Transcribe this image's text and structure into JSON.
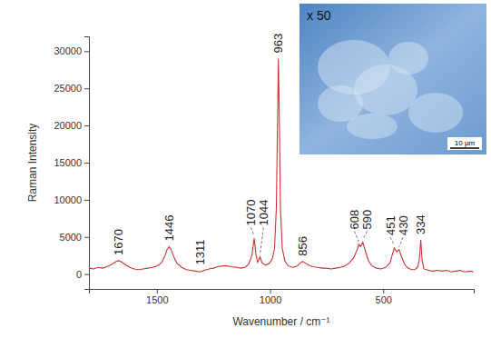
{
  "chart_data": {
    "type": "line",
    "x_label": "Wavenumber / cm⁻¹",
    "y_label": "Raman Intensity",
    "color": "#cc3333",
    "grid": false,
    "xlim": [
      1800,
      100
    ],
    "ylim": [
      -2000,
      32000
    ],
    "xticks": [
      1500,
      1000,
      500
    ],
    "yticks": [
      0,
      5000,
      10000,
      15000,
      20000,
      25000,
      30000
    ],
    "x": [
      1800,
      1780,
      1760,
      1740,
      1720,
      1700,
      1680,
      1670,
      1660,
      1640,
      1620,
      1600,
      1580,
      1560,
      1540,
      1520,
      1500,
      1480,
      1465,
      1455,
      1446,
      1437,
      1425,
      1410,
      1390,
      1370,
      1350,
      1330,
      1311,
      1290,
      1270,
      1250,
      1230,
      1210,
      1190,
      1170,
      1150,
      1130,
      1110,
      1095,
      1080,
      1070,
      1062,
      1055,
      1044,
      1035,
      1020,
      1005,
      990,
      980,
      972,
      967,
      963,
      959,
      954,
      946,
      935,
      920,
      900,
      880,
      866,
      856,
      846,
      830,
      810,
      790,
      770,
      750,
      730,
      710,
      690,
      670,
      650,
      630,
      615,
      608,
      600,
      590,
      580,
      565,
      550,
      530,
      510,
      490,
      470,
      460,
      451,
      440,
      430,
      420,
      405,
      390,
      375,
      360,
      348,
      340,
      334,
      328,
      320,
      300,
      280,
      260,
      240,
      220,
      200,
      180,
      160,
      140,
      120,
      100
    ],
    "values": [
      800,
      700,
      900,
      800,
      1000,
      1300,
      1700,
      1800,
      1700,
      1300,
      900,
      700,
      600,
      700,
      800,
      900,
      1100,
      1500,
      2400,
      3300,
      3700,
      3300,
      2300,
      1400,
      900,
      600,
      500,
      400,
      300,
      500,
      700,
      800,
      1000,
      1100,
      1100,
      1000,
      900,
      800,
      900,
      1300,
      2500,
      4800,
      2600,
      1600,
      2300,
      1500,
      1200,
      1400,
      2000,
      3500,
      9000,
      20000,
      29000,
      21000,
      9000,
      3500,
      1800,
      1100,
      900,
      1100,
      1500,
      1700,
      1500,
      1200,
      1000,
      900,
      800,
      800,
      700,
      800,
      900,
      1100,
      1500,
      2200,
      3300,
      4000,
      3700,
      4300,
      3200,
      1800,
      1100,
      800,
      700,
      900,
      1500,
      2600,
      3500,
      3000,
      3300,
      2400,
      1300,
      800,
      600,
      600,
      900,
      2000,
      4600,
      1800,
      700,
      500,
      400,
      500,
      400,
      500,
      300,
      400,
      500,
      300,
      400,
      300
    ],
    "annotations": [
      {
        "label": "1670",
        "x": 1670
      },
      {
        "label": "1446",
        "x": 1446
      },
      {
        "label": "1311",
        "x": 1311
      },
      {
        "label": "1070",
        "x": 1070
      },
      {
        "label": "1044",
        "x": 1044
      },
      {
        "label": "963",
        "x": 963
      },
      {
        "label": "856",
        "x": 856
      },
      {
        "label": "608",
        "x": 608
      },
      {
        "label": "590",
        "x": 590
      },
      {
        "label": "451",
        "x": 451
      },
      {
        "label": "430",
        "x": 430
      },
      {
        "label": "334",
        "x": 334
      }
    ],
    "inset": {
      "label": "x 50",
      "scale_bar": "10 µm"
    }
  }
}
